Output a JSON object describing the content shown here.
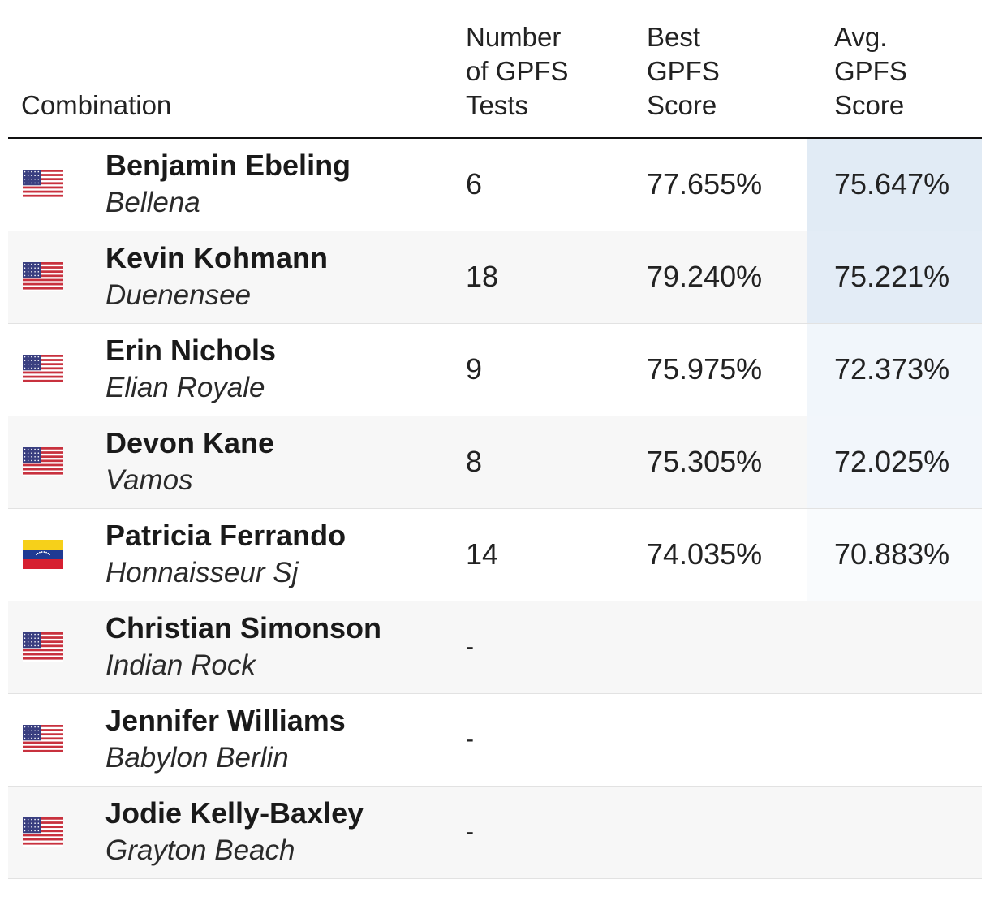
{
  "table": {
    "headers": {
      "combination": "Combination",
      "tests": [
        "Number",
        "of GPFS",
        "Tests"
      ],
      "best": [
        "Best",
        "GPFS",
        "Score"
      ],
      "avg": [
        "Avg.",
        "GPFS",
        "Score"
      ]
    },
    "rows": [
      {
        "flag": "us-flag-icon",
        "rider": "Benjamin Ebeling",
        "horse": "Bellena",
        "tests": "6",
        "best": "77.655%",
        "avg": "75.647%",
        "avg_highlight": "#e1ebf5"
      },
      {
        "flag": "us-flag-icon",
        "rider": "Kevin Kohmann",
        "horse": "Duenensee",
        "tests": "18",
        "best": "79.240%",
        "avg": "75.221%",
        "avg_highlight": "#e3ecf6"
      },
      {
        "flag": "us-flag-icon",
        "rider": "Erin Nichols",
        "horse": "Elian Royale",
        "tests": "9",
        "best": "75.975%",
        "avg": "72.373%",
        "avg_highlight": "#f1f6fb"
      },
      {
        "flag": "us-flag-icon",
        "rider": "Devon Kane",
        "horse": "Vamos",
        "tests": "8",
        "best": "75.305%",
        "avg": "72.025%",
        "avg_highlight": "#f2f6fb"
      },
      {
        "flag": "ve-flag-icon",
        "rider": "Patricia Ferrando",
        "horse": "Honnaisseur Sj",
        "tests": "14",
        "best": "74.035%",
        "avg": "70.883%",
        "avg_highlight": "#f9fbfd"
      },
      {
        "flag": "us-flag-icon",
        "rider": "Christian Simonson",
        "horse": "Indian Rock",
        "tests": "-",
        "best": "",
        "avg": "",
        "avg_highlight": ""
      },
      {
        "flag": "us-flag-icon",
        "rider": "Jennifer Williams",
        "horse": "Babylon Berlin",
        "tests": "-",
        "best": "",
        "avg": "",
        "avg_highlight": ""
      },
      {
        "flag": "us-flag-icon",
        "rider": "Jodie Kelly-Baxley",
        "horse": "Grayton Beach",
        "tests": "-",
        "best": "",
        "avg": "",
        "avg_highlight": ""
      }
    ]
  }
}
